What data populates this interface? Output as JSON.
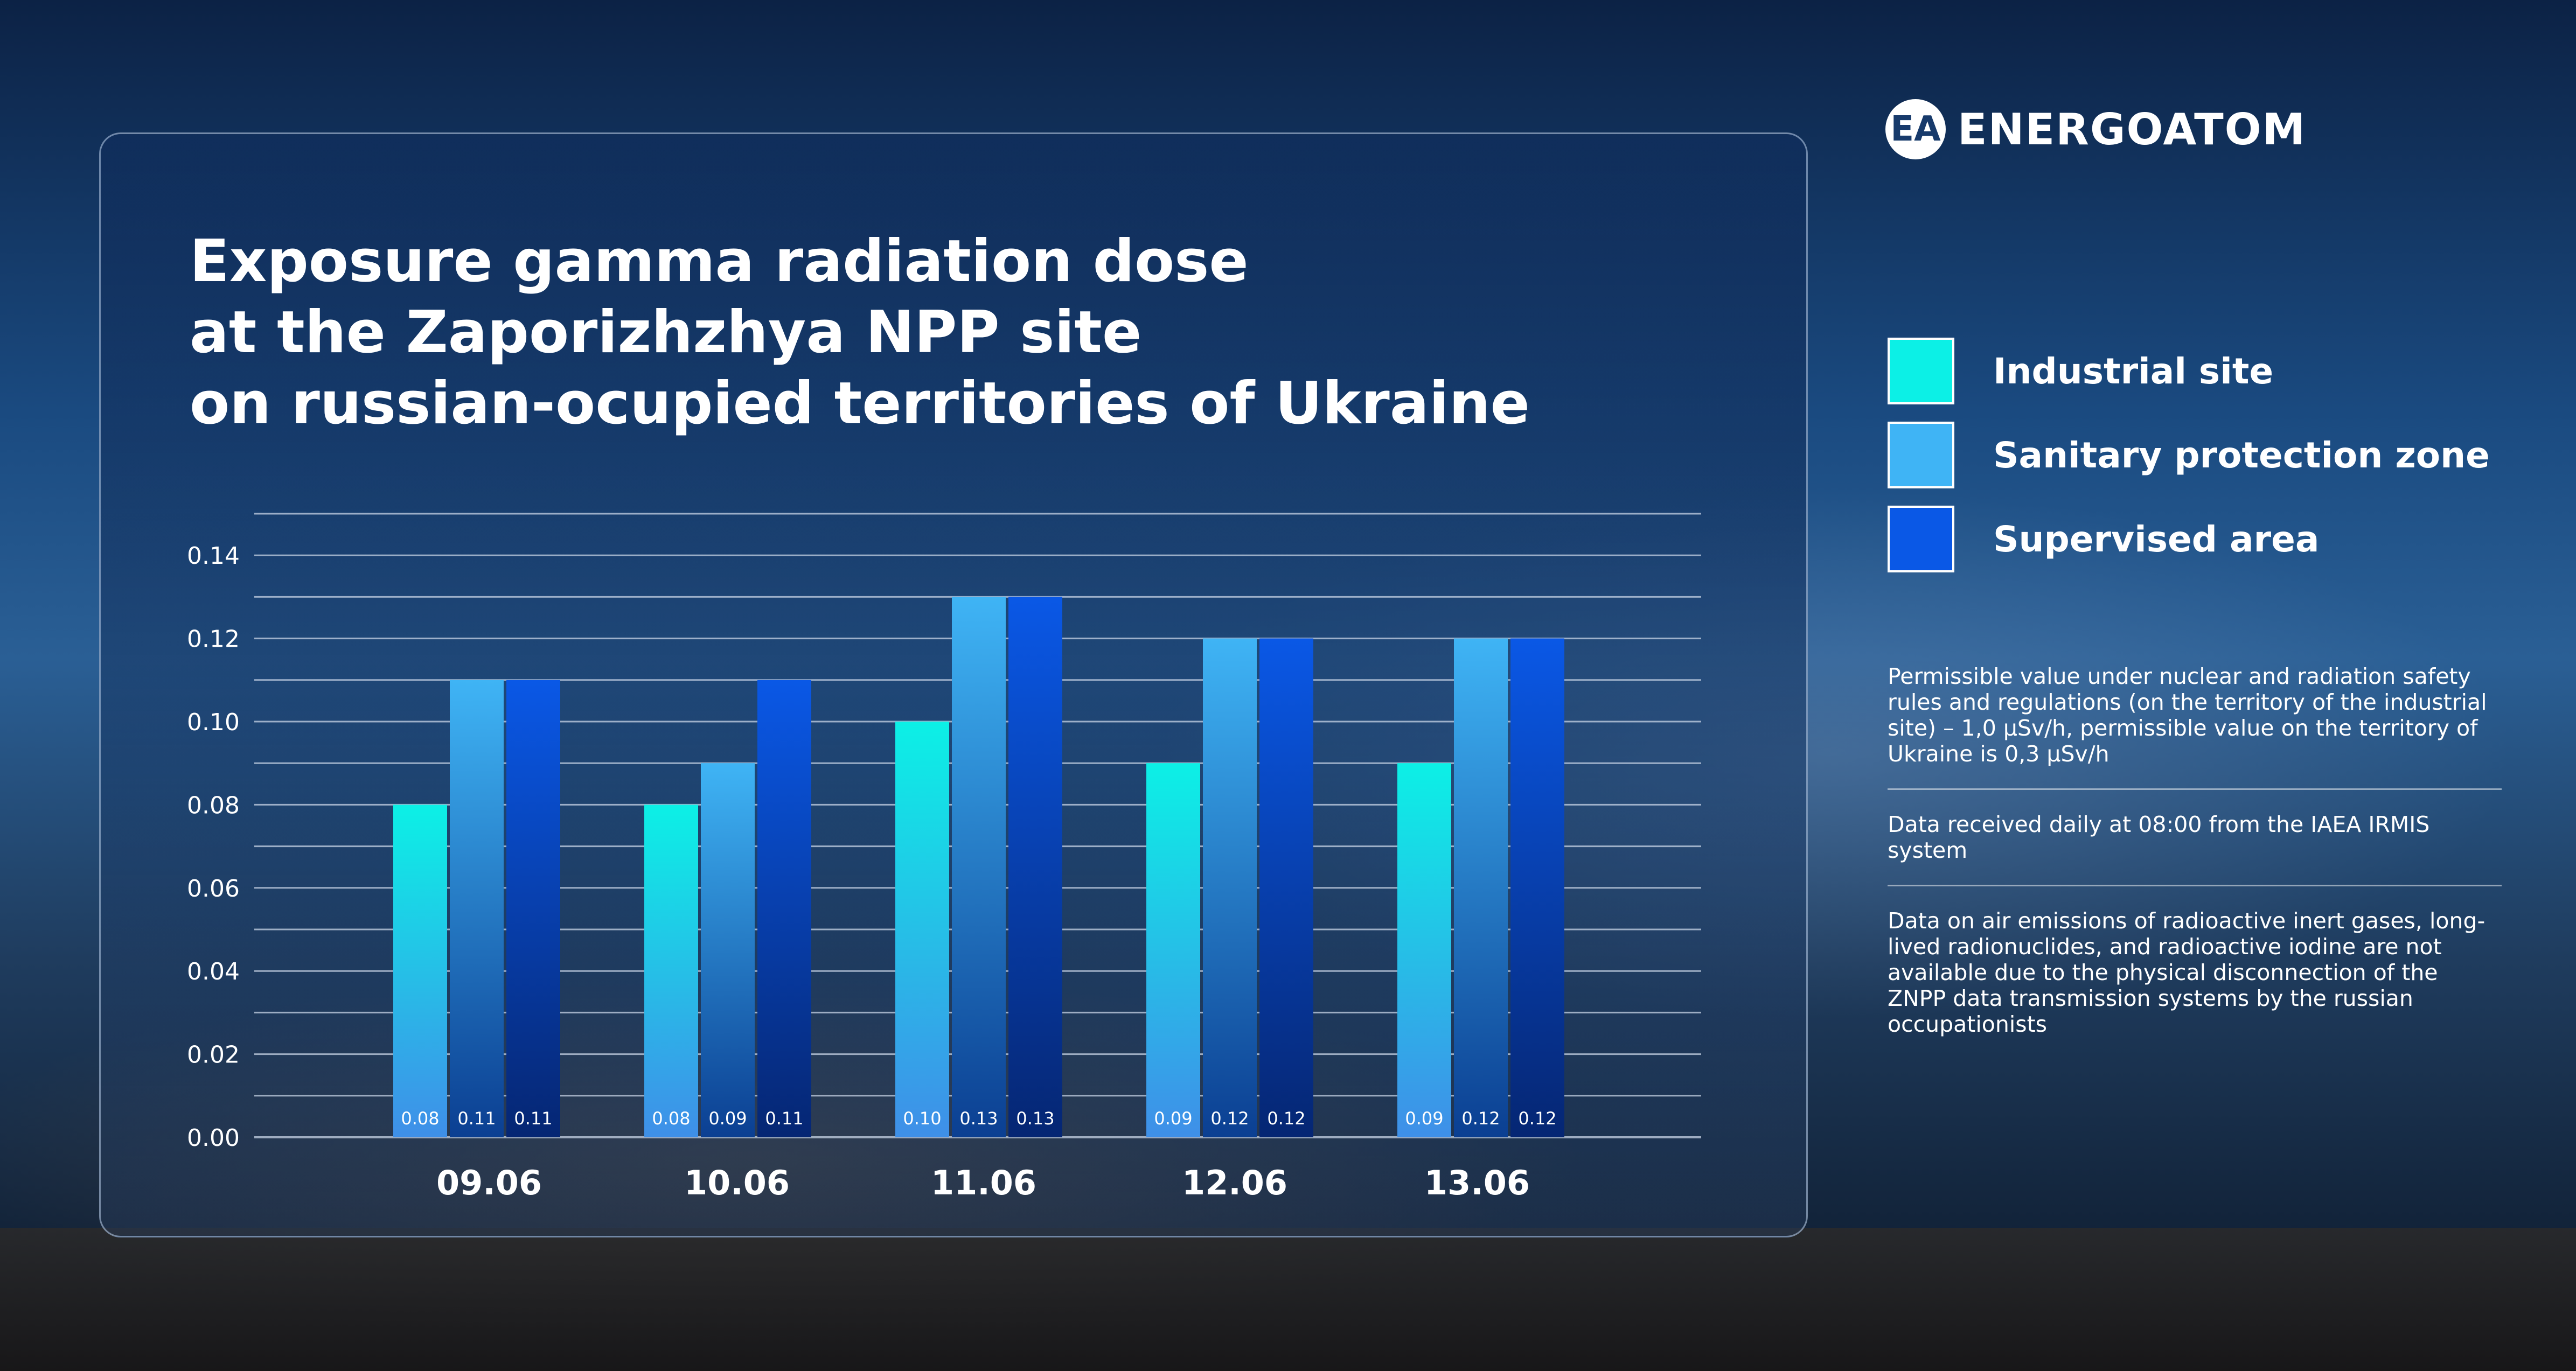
{
  "brand": {
    "logo_text": "ENERGOATOM",
    "logo_mark": "EA"
  },
  "title_lines": [
    "Exposure gamma radiation dose",
    "at the Zaporizhzhya NPP site",
    "on russian-ocupied territories of Ukraine"
  ],
  "colors": {
    "industrial": "#0cf0e6",
    "sanitary": "#3fb4f5",
    "supervised": "#0a58e6",
    "gridline": "#c8d4e6"
  },
  "legend": [
    {
      "label": "Industrial site",
      "color": "#0cf0e6"
    },
    {
      "label": "Sanitary protection zone",
      "color": "#3fb4f5"
    },
    {
      "label": "Supervised area",
      "color": "#0a58e6"
    }
  ],
  "notes": [
    "Permissible value under nuclear and radiation safety rules and regulations (on the territory of the industrial site) – 1,0 μSv/h, permissible value on the territory of Ukraine is 0,3 μSv/h",
    "Data received daily at 08:00 from the IAEA IRMIS system",
    "Data on air emissions of radioactive inert gases, long-lived radionuclides, and radioactive iodine are not available due to the physical disconnection of the ZNPP data transmission systems by the russian occupationists"
  ],
  "chart_data": {
    "type": "bar",
    "categories": [
      "09.06",
      "10.06",
      "11.06",
      "12.06",
      "13.06"
    ],
    "series": [
      {
        "name": "Industrial site",
        "values": [
          0.08,
          0.08,
          0.1,
          0.09,
          0.09
        ],
        "labels": [
          "0.08",
          "0.08",
          "0.10",
          "0.09",
          "0.09"
        ]
      },
      {
        "name": "Sanitary protection zone",
        "values": [
          0.11,
          0.09,
          0.13,
          0.12,
          0.12
        ],
        "labels": [
          "0.11",
          "0.09",
          "0.13",
          "0.12",
          "0.12"
        ]
      },
      {
        "name": "Supervised area",
        "values": [
          0.11,
          0.11,
          0.13,
          0.12,
          0.12
        ],
        "labels": [
          "0.11",
          "0.11",
          "0.13",
          "0.12",
          "0.12"
        ]
      }
    ],
    "yticks": [
      "0.00",
      "0.02",
      "0.04",
      "0.06",
      "0.08",
      "0.10",
      "0.12",
      "0.14"
    ],
    "ylim": [
      0,
      0.15
    ],
    "grid_step": 0.01,
    "grid": true,
    "legend_position": "right"
  }
}
